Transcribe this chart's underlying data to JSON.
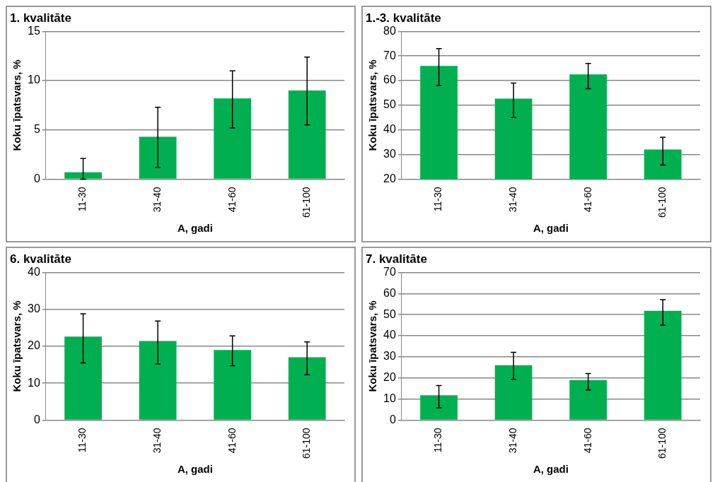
{
  "chart_data": [
    {
      "type": "bar",
      "title": "1. kvalitāte",
      "xlabel": "A, gadi",
      "ylabel": "Koku īpatsvars, %",
      "categories": [
        "11-30",
        "31-40",
        "41-60",
        "61-100"
      ],
      "color": "#00b050",
      "values": [
        0.7,
        4.3,
        8.2,
        9.0
      ],
      "errors": [
        [
          0,
          2.1
        ],
        [
          1.2,
          7.3
        ],
        [
          5.2,
          11.0
        ],
        [
          5.5,
          12.4
        ]
      ],
      "ylim": [
        0,
        15
      ],
      "yticks": [
        0,
        5,
        10,
        15
      ],
      "grid": "y"
    },
    {
      "type": "bar",
      "title": "1.-3. kvalitāte",
      "xlabel": "A, gadi",
      "ylabel": "Koku īpatsvars, %",
      "categories": [
        "11-30",
        "31-40",
        "41-60",
        "61-100"
      ],
      "color": "#00b050",
      "values": [
        66,
        52.7,
        62.5,
        32
      ],
      "errors": [
        [
          58,
          73
        ],
        [
          45,
          59
        ],
        [
          56.7,
          67
        ],
        [
          25.7,
          37
        ]
      ],
      "ylim": [
        20,
        80
      ],
      "yticks": [
        20,
        30,
        40,
        50,
        60,
        70,
        80
      ],
      "grid": "y"
    },
    {
      "type": "bar",
      "title": "6. kvalitāte",
      "xlabel": "A, gadi",
      "ylabel": "Koku īpatsvars, %",
      "categories": [
        "11-30",
        "31-40",
        "41-60",
        "61-100"
      ],
      "color": "#00b050",
      "values": [
        22.6,
        21.4,
        19,
        17
      ],
      "errors": [
        [
          15.5,
          28.8
        ],
        [
          15.2,
          26.8
        ],
        [
          14.7,
          22.8
        ],
        [
          12.3,
          21.2
        ]
      ],
      "ylim": [
        0,
        40
      ],
      "yticks": [
        0,
        10,
        20,
        30,
        40
      ],
      "grid": "y"
    },
    {
      "type": "bar",
      "title": "7. kvalitāte",
      "xlabel": "A, gadi",
      "ylabel": "Koku īpatsvars, %",
      "categories": [
        "11-30",
        "31-40",
        "41-60",
        "61-100"
      ],
      "color": "#00b050",
      "values": [
        11.8,
        26,
        19,
        51.8
      ],
      "errors": [
        [
          5.8,
          16.4
        ],
        [
          19.3,
          32.1
        ],
        [
          14.3,
          22.1
        ],
        [
          45,
          57.1
        ]
      ],
      "ylim": [
        0,
        70
      ],
      "yticks": [
        0,
        10,
        20,
        30,
        40,
        50,
        60,
        70
      ],
      "grid": "y"
    }
  ]
}
